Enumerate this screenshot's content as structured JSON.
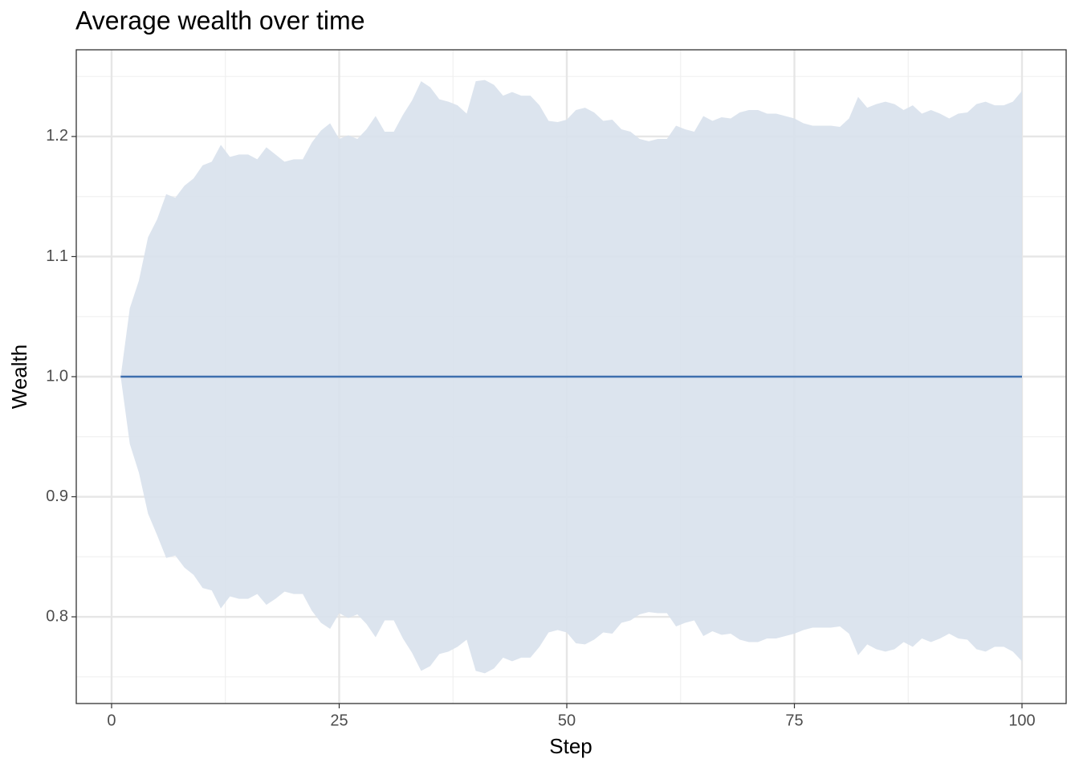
{
  "chart_data": {
    "type": "line",
    "title": "Average wealth over time",
    "x_label": "Step",
    "y_label": "Wealth",
    "x": [
      1,
      2,
      3,
      4,
      5,
      6,
      7,
      8,
      9,
      10,
      11,
      12,
      13,
      14,
      15,
      16,
      17,
      18,
      19,
      20,
      21,
      22,
      23,
      24,
      25,
      26,
      27,
      28,
      29,
      30,
      31,
      32,
      33,
      34,
      35,
      36,
      37,
      38,
      39,
      40,
      41,
      42,
      43,
      44,
      45,
      46,
      47,
      48,
      49,
      50,
      51,
      52,
      53,
      54,
      55,
      56,
      57,
      58,
      59,
      60,
      61,
      62,
      63,
      64,
      65,
      66,
      67,
      68,
      69,
      70,
      71,
      72,
      73,
      74,
      75,
      76,
      77,
      78,
      79,
      80,
      81,
      82,
      83,
      84,
      85,
      86,
      87,
      88,
      89,
      90,
      91,
      92,
      93,
      94,
      95,
      96,
      97,
      98,
      99,
      100
    ],
    "series": [
      {
        "color": "#3d6fae",
        "values": [
          1,
          1,
          1,
          1,
          1,
          1,
          1,
          1,
          1,
          1,
          1,
          1,
          1,
          1,
          1,
          1,
          1,
          1,
          1,
          1,
          1,
          1,
          1,
          1,
          1,
          1,
          1,
          1,
          1,
          1,
          1,
          1,
          1,
          1,
          1,
          1,
          1,
          1,
          1,
          1,
          1,
          1,
          1,
          1,
          1,
          1,
          1,
          1,
          1,
          1,
          1,
          1,
          1,
          1,
          1,
          1,
          1,
          1,
          1,
          1,
          1,
          1,
          1,
          1,
          1,
          1,
          1,
          1,
          1,
          1,
          1,
          1,
          1,
          1,
          1,
          1,
          1,
          1,
          1,
          1,
          1,
          1,
          1,
          1,
          1,
          1,
          1,
          1,
          1,
          1,
          1,
          1,
          1,
          1,
          1,
          1,
          1,
          1,
          1,
          1
        ]
      }
    ],
    "band": {
      "color": "#d8e1ec",
      "upper": [
        1.0,
        1.057,
        1.08,
        1.116,
        1.131,
        1.152,
        1.149,
        1.159,
        1.165,
        1.176,
        1.179,
        1.193,
        1.183,
        1.185,
        1.185,
        1.181,
        1.191,
        1.185,
        1.179,
        1.181,
        1.181,
        1.195,
        1.205,
        1.211,
        1.198,
        1.201,
        1.198,
        1.206,
        1.217,
        1.204,
        1.204,
        1.218,
        1.23,
        1.246,
        1.241,
        1.231,
        1.229,
        1.226,
        1.219,
        1.246,
        1.247,
        1.243,
        1.234,
        1.237,
        1.234,
        1.234,
        1.226,
        1.213,
        1.212,
        1.214,
        1.222,
        1.224,
        1.22,
        1.213,
        1.214,
        1.206,
        1.204,
        1.198,
        1.196,
        1.198,
        1.198,
        1.209,
        1.206,
        1.204,
        1.217,
        1.213,
        1.216,
        1.215,
        1.22,
        1.222,
        1.222,
        1.219,
        1.219,
        1.217,
        1.215,
        1.211,
        1.209,
        1.209,
        1.209,
        1.208,
        1.215,
        1.233,
        1.224,
        1.227,
        1.229,
        1.227,
        1.222,
        1.226,
        1.219,
        1.222,
        1.219,
        1.215,
        1.219,
        1.22,
        1.227,
        1.229,
        1.226,
        1.226,
        1.229,
        1.238
      ],
      "lower": [
        1.0,
        0.944,
        0.92,
        0.886,
        0.868,
        0.849,
        0.851,
        0.841,
        0.835,
        0.824,
        0.822,
        0.807,
        0.817,
        0.815,
        0.815,
        0.819,
        0.81,
        0.815,
        0.821,
        0.819,
        0.819,
        0.805,
        0.795,
        0.79,
        0.803,
        0.799,
        0.802,
        0.794,
        0.783,
        0.797,
        0.797,
        0.782,
        0.77,
        0.755,
        0.759,
        0.769,
        0.771,
        0.775,
        0.781,
        0.755,
        0.753,
        0.757,
        0.766,
        0.763,
        0.766,
        0.766,
        0.775,
        0.787,
        0.789,
        0.787,
        0.778,
        0.777,
        0.781,
        0.787,
        0.786,
        0.795,
        0.797,
        0.802,
        0.804,
        0.803,
        0.803,
        0.792,
        0.795,
        0.797,
        0.784,
        0.788,
        0.785,
        0.786,
        0.781,
        0.779,
        0.779,
        0.782,
        0.782,
        0.784,
        0.786,
        0.789,
        0.791,
        0.791,
        0.791,
        0.792,
        0.786,
        0.768,
        0.777,
        0.773,
        0.771,
        0.773,
        0.779,
        0.775,
        0.782,
        0.779,
        0.782,
        0.786,
        0.782,
        0.781,
        0.773,
        0.771,
        0.775,
        0.775,
        0.771,
        0.763
      ]
    },
    "xlim": [
      -3.88,
      104.85
    ],
    "xticks": [
      0,
      25,
      50,
      75,
      100
    ],
    "ylim": [
      0.7278,
      1.2722
    ],
    "yticks": [
      0.8,
      0.9,
      {
        "value": 1.0,
        "label": "1.0"
      },
      1.1,
      1.2
    ],
    "grid": true
  }
}
